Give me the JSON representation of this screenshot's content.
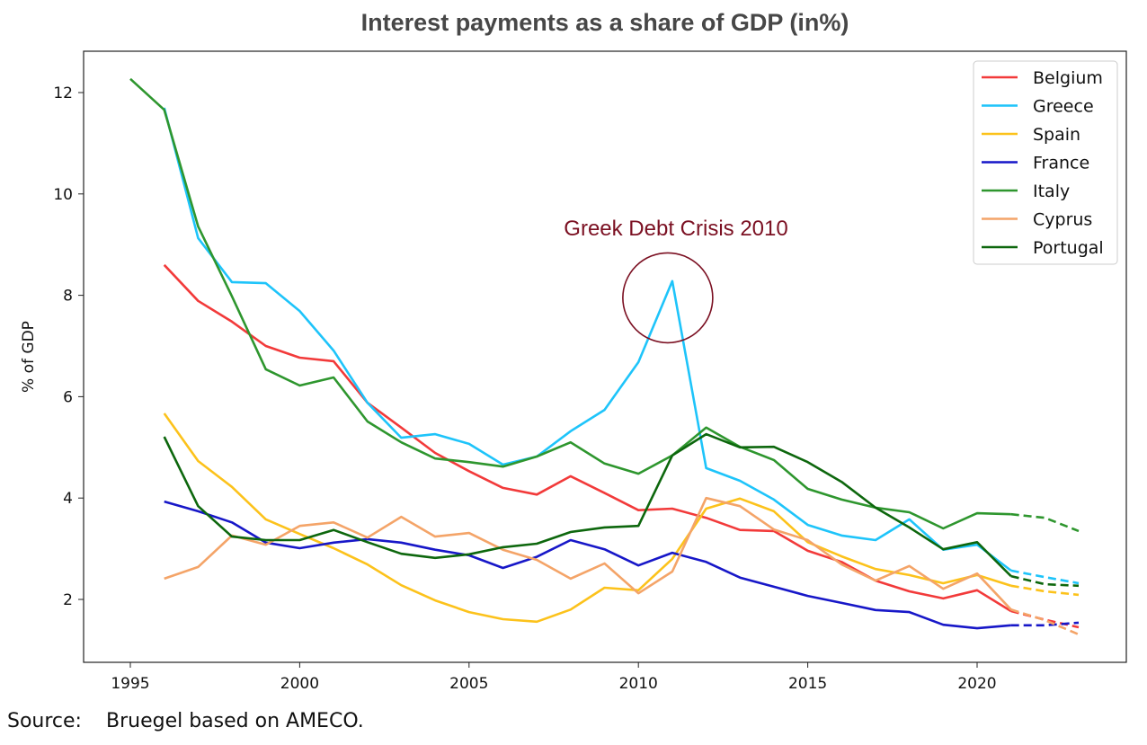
{
  "chart_data": {
    "type": "line",
    "title": "Interest payments as a share of GDP (in%)",
    "xlabel": "",
    "ylabel": "% of GDP",
    "xlim": [
      1993.7,
      2024.5
    ],
    "ylim": [
      0.8,
      12.8
    ],
    "xticks": [
      1995,
      2000,
      2005,
      2010,
      2015,
      2020
    ],
    "yticks": [
      2,
      4,
      6,
      8,
      10,
      12
    ],
    "grid": false,
    "legend_position": "top-right",
    "forecast_from": 2021,
    "annotation": {
      "text": "Greek Debt Crisis 2010",
      "x": 2011,
      "y": 7.95,
      "color": "#7b1022"
    },
    "series": [
      {
        "name": "Belgium",
        "color": "#f23a3a",
        "x": [
          1996,
          1997,
          1998,
          1999,
          2000,
          2001,
          2002,
          2003,
          2004,
          2005,
          2006,
          2007,
          2008,
          2009,
          2010,
          2011,
          2012,
          2013,
          2014,
          2015,
          2016,
          2017,
          2018,
          2019,
          2020,
          2021,
          2022,
          2023
        ],
        "values": [
          8.6,
          7.89,
          7.48,
          7.0,
          6.77,
          6.7,
          5.88,
          5.39,
          4.89,
          4.53,
          4.2,
          4.07,
          4.43,
          4.1,
          3.76,
          3.79,
          3.61,
          3.37,
          3.35,
          2.96,
          2.74,
          2.37,
          2.16,
          2.02,
          2.18,
          1.77,
          1.6,
          1.45
        ]
      },
      {
        "name": "Greece",
        "color": "#1ec4fa",
        "x": [
          1996,
          1997,
          1998,
          1999,
          2000,
          2001,
          2002,
          2003,
          2004,
          2005,
          2006,
          2007,
          2008,
          2009,
          2010,
          2011,
          2012,
          2013,
          2014,
          2015,
          2016,
          2017,
          2018,
          2019,
          2020,
          2021,
          2022,
          2023
        ],
        "values": [
          11.7,
          9.13,
          8.26,
          8.24,
          7.69,
          6.91,
          5.88,
          5.19,
          5.26,
          5.07,
          4.66,
          4.82,
          5.32,
          5.74,
          6.68,
          8.28,
          4.59,
          4.34,
          3.97,
          3.47,
          3.26,
          3.17,
          3.58,
          2.98,
          3.08,
          2.57,
          2.44,
          2.32
        ]
      },
      {
        "name": "Spain",
        "color": "#fcc21b",
        "x": [
          1996,
          1997,
          1998,
          1999,
          2000,
          2001,
          2002,
          2003,
          2004,
          2005,
          2006,
          2007,
          2008,
          2009,
          2010,
          2011,
          2012,
          2013,
          2014,
          2015,
          2016,
          2017,
          2018,
          2019,
          2020,
          2021,
          2022,
          2023
        ],
        "values": [
          5.67,
          4.73,
          4.22,
          3.58,
          3.29,
          3.01,
          2.69,
          2.28,
          1.98,
          1.75,
          1.61,
          1.56,
          1.8,
          2.23,
          2.18,
          2.8,
          3.79,
          3.99,
          3.74,
          3.13,
          2.85,
          2.6,
          2.48,
          2.32,
          2.48,
          2.27,
          2.16,
          2.09
        ]
      },
      {
        "name": "France",
        "color": "#1717c8",
        "x": [
          1996,
          1997,
          1998,
          1999,
          2000,
          2001,
          2002,
          2003,
          2004,
          2005,
          2006,
          2007,
          2008,
          2009,
          2010,
          2011,
          2012,
          2013,
          2014,
          2015,
          2016,
          2017,
          2018,
          2019,
          2020,
          2021,
          2022,
          2023
        ],
        "values": [
          3.93,
          3.74,
          3.52,
          3.12,
          3.01,
          3.12,
          3.19,
          3.12,
          2.98,
          2.87,
          2.62,
          2.84,
          3.17,
          2.99,
          2.67,
          2.92,
          2.74,
          2.43,
          2.25,
          2.07,
          1.93,
          1.79,
          1.75,
          1.5,
          1.43,
          1.49,
          1.49,
          1.54
        ]
      },
      {
        "name": "Italy",
        "color": "#2e962e",
        "x": [
          1995,
          1996,
          1997,
          1998,
          1999,
          2000,
          2001,
          2002,
          2003,
          2004,
          2005,
          2006,
          2007,
          2008,
          2009,
          2010,
          2011,
          2012,
          2013,
          2014,
          2015,
          2016,
          2017,
          2018,
          2019,
          2020,
          2021,
          2022,
          2023
        ],
        "values": [
          12.27,
          11.66,
          9.36,
          7.98,
          6.54,
          6.22,
          6.38,
          5.51,
          5.1,
          4.78,
          4.71,
          4.62,
          4.82,
          5.1,
          4.68,
          4.48,
          4.84,
          5.39,
          5.01,
          4.75,
          4.18,
          3.97,
          3.81,
          3.72,
          3.4,
          3.7,
          3.68,
          3.61,
          3.35
        ]
      },
      {
        "name": "Cyprus",
        "color": "#f4a468",
        "x": [
          1996,
          1997,
          1998,
          1999,
          2000,
          2001,
          2002,
          2003,
          2004,
          2005,
          2006,
          2007,
          2008,
          2009,
          2010,
          2011,
          2012,
          2013,
          2014,
          2015,
          2016,
          2017,
          2018,
          2019,
          2020,
          2021,
          2022,
          2023
        ],
        "values": [
          2.41,
          2.64,
          3.26,
          3.08,
          3.45,
          3.52,
          3.22,
          3.63,
          3.24,
          3.31,
          2.98,
          2.78,
          2.41,
          2.71,
          2.12,
          2.55,
          4.0,
          3.84,
          3.38,
          3.17,
          2.69,
          2.37,
          2.66,
          2.21,
          2.51,
          1.8,
          1.59,
          1.31
        ]
      },
      {
        "name": "Portugal",
        "color": "#0d670d",
        "x": [
          1996,
          1997,
          1998,
          1999,
          2000,
          2001,
          2002,
          2003,
          2004,
          2005,
          2006,
          2007,
          2008,
          2009,
          2010,
          2011,
          2012,
          2013,
          2014,
          2015,
          2016,
          2017,
          2018,
          2019,
          2020,
          2021,
          2022,
          2023
        ],
        "values": [
          5.21,
          3.84,
          3.24,
          3.17,
          3.17,
          3.37,
          3.13,
          2.9,
          2.82,
          2.89,
          3.03,
          3.1,
          3.33,
          3.42,
          3.45,
          4.84,
          5.26,
          5.0,
          5.01,
          4.71,
          4.32,
          3.81,
          3.42,
          2.99,
          3.13,
          2.46,
          2.3,
          2.27
        ]
      }
    ]
  },
  "source": {
    "label": "Source:",
    "text": "Bruegel based on AMECO."
  }
}
